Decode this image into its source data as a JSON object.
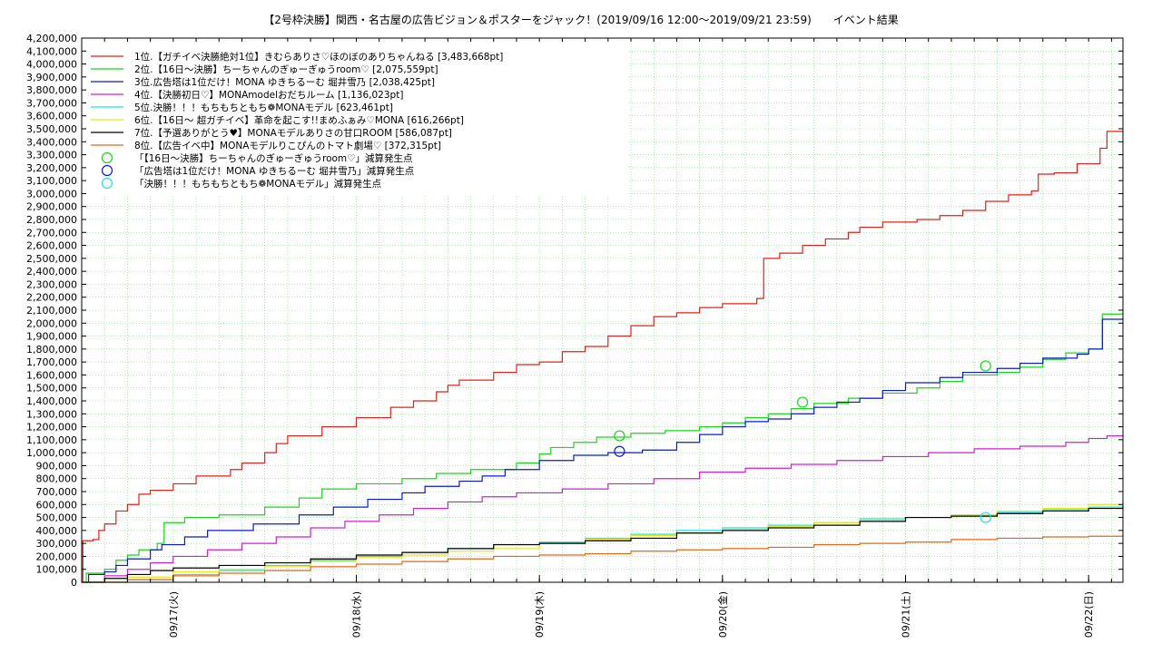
{
  "chart_data": {
    "type": "line",
    "title": "【2号枠決勝】関西・名古屋の広告ビジョン＆ポスターをジャック！(2019/09/16 12:00〜2019/09/21 23:59)　　イベント結果",
    "xlabel": "",
    "ylabel": "",
    "x_start": "2019-09-16 12:00",
    "x_end": "2019-09-22 01:00",
    "x_ticks": [
      "09/17(火)",
      "09/18(水)",
      "09/19(木)",
      "09/20(金)",
      "09/21(土)",
      "09/22(日)"
    ],
    "ylim": [
      0,
      4200000
    ],
    "y_step": 100000,
    "grid": true,
    "legend_position": "top-left",
    "series": [
      {
        "name": "1位.【ガチイベ決勝絶対1位】きむらありさ♡ほのぼのありちゃんねる [3,483,668pt]",
        "color": "#e4201a",
        "points": [
          [
            0.0,
            0
          ],
          [
            0.05,
            320000
          ],
          [
            0.5,
            330000
          ],
          [
            0.75,
            400000
          ],
          [
            1.0,
            450000
          ],
          [
            1.5,
            550000
          ],
          [
            2.0,
            600000
          ],
          [
            2.5,
            680000
          ],
          [
            3.0,
            710000
          ],
          [
            4.0,
            760000
          ],
          [
            5.0,
            820000
          ],
          [
            6.5,
            870000
          ],
          [
            7.0,
            920000
          ],
          [
            8.0,
            1000000
          ],
          [
            8.5,
            1070000
          ],
          [
            9.0,
            1130000
          ],
          [
            10.5,
            1200000
          ],
          [
            12.0,
            1270000
          ],
          [
            13.5,
            1350000
          ],
          [
            14.5,
            1400000
          ],
          [
            15.5,
            1470000
          ],
          [
            16.0,
            1520000
          ],
          [
            16.5,
            1560000
          ],
          [
            18.0,
            1620000
          ],
          [
            19.0,
            1680000
          ],
          [
            20.0,
            1700000
          ],
          [
            21.0,
            1780000
          ],
          [
            22.0,
            1820000
          ],
          [
            23.0,
            1900000
          ],
          [
            24.0,
            1980000
          ],
          [
            25.0,
            2050000
          ],
          [
            26.0,
            2080000
          ],
          [
            27.0,
            2120000
          ],
          [
            28.0,
            2150000
          ],
          [
            29.5,
            2190000
          ],
          [
            29.8,
            2500000
          ],
          [
            30.5,
            2540000
          ],
          [
            31.5,
            2600000
          ],
          [
            32.5,
            2650000
          ],
          [
            33.5,
            2700000
          ],
          [
            34.0,
            2740000
          ],
          [
            35.0,
            2780000
          ],
          [
            36.5,
            2800000
          ],
          [
            37.5,
            2830000
          ],
          [
            38.5,
            2870000
          ],
          [
            39.5,
            2940000
          ],
          [
            40.5,
            2990000
          ],
          [
            41.5,
            3020000
          ],
          [
            41.8,
            3150000
          ],
          [
            42.5,
            3160000
          ],
          [
            43.5,
            3230000
          ],
          [
            44.5,
            3350000
          ],
          [
            44.8,
            3480000
          ],
          [
            45.5,
            3483668
          ]
        ]
      },
      {
        "name": "2位.【16日〜決勝】ちーちゃんのぎゅーぎゅうroom♡ [2,075,559pt]",
        "color": "#19d819",
        "points": [
          [
            0.0,
            0
          ],
          [
            0.2,
            70000
          ],
          [
            1.0,
            100000
          ],
          [
            1.5,
            170000
          ],
          [
            2.0,
            210000
          ],
          [
            2.5,
            250000
          ],
          [
            3.3,
            300000
          ],
          [
            3.6,
            460000
          ],
          [
            4.5,
            500000
          ],
          [
            6.0,
            520000
          ],
          [
            8.0,
            580000
          ],
          [
            9.5,
            650000
          ],
          [
            10.5,
            720000
          ],
          [
            12.0,
            760000
          ],
          [
            14.0,
            800000
          ],
          [
            15.5,
            840000
          ],
          [
            17.0,
            870000
          ],
          [
            19.0,
            920000
          ],
          [
            20.0,
            990000
          ],
          [
            20.5,
            1040000
          ],
          [
            21.5,
            1080000
          ],
          [
            22.5,
            1120000
          ],
          [
            24.0,
            1150000
          ],
          [
            25.5,
            1170000
          ],
          [
            27.0,
            1200000
          ],
          [
            28.0,
            1230000
          ],
          [
            29.0,
            1270000
          ],
          [
            30.0,
            1300000
          ],
          [
            31.0,
            1340000
          ],
          [
            32.0,
            1380000
          ],
          [
            33.5,
            1420000
          ],
          [
            35.0,
            1460000
          ],
          [
            36.5,
            1500000
          ],
          [
            37.5,
            1550000
          ],
          [
            38.5,
            1600000
          ],
          [
            40.0,
            1620000
          ],
          [
            41.0,
            1660000
          ],
          [
            42.0,
            1720000
          ],
          [
            43.0,
            1770000
          ],
          [
            44.0,
            1800000
          ],
          [
            44.6,
            2070000
          ],
          [
            45.5,
            2075559
          ]
        ]
      },
      {
        "name": "3位.広告塔は1位だけ！MONA ゆきちるーむ  堀井雪乃 [2,038,425pt]",
        "color": "#0a1ad8",
        "points": [
          [
            0.0,
            0
          ],
          [
            0.3,
            60000
          ],
          [
            1.0,
            80000
          ],
          [
            1.5,
            130000
          ],
          [
            2.0,
            180000
          ],
          [
            3.0,
            250000
          ],
          [
            3.5,
            290000
          ],
          [
            4.5,
            350000
          ],
          [
            5.5,
            400000
          ],
          [
            7.5,
            450000
          ],
          [
            9.5,
            520000
          ],
          [
            11.0,
            580000
          ],
          [
            12.5,
            640000
          ],
          [
            14.0,
            690000
          ],
          [
            15.0,
            740000
          ],
          [
            16.5,
            780000
          ],
          [
            17.5,
            820000
          ],
          [
            18.5,
            870000
          ],
          [
            20.0,
            940000
          ],
          [
            21.5,
            980000
          ],
          [
            23.0,
            1000000
          ],
          [
            24.5,
            1020000
          ],
          [
            26.0,
            1080000
          ],
          [
            27.0,
            1140000
          ],
          [
            28.0,
            1200000
          ],
          [
            29.0,
            1240000
          ],
          [
            30.0,
            1260000
          ],
          [
            31.0,
            1300000
          ],
          [
            32.0,
            1350000
          ],
          [
            33.0,
            1390000
          ],
          [
            34.0,
            1420000
          ],
          [
            35.0,
            1480000
          ],
          [
            36.0,
            1540000
          ],
          [
            37.5,
            1580000
          ],
          [
            38.5,
            1620000
          ],
          [
            40.0,
            1650000
          ],
          [
            41.0,
            1690000
          ],
          [
            42.0,
            1730000
          ],
          [
            43.5,
            1760000
          ],
          [
            44.0,
            1800000
          ],
          [
            44.6,
            2030000
          ],
          [
            45.5,
            2038425
          ]
        ]
      },
      {
        "name": "4位.【決勝初日♡】MONAmodelおだちルーム [1,136,023pt]",
        "color": "#d31dd3",
        "points": [
          [
            0.0,
            0
          ],
          [
            1.0,
            50000
          ],
          [
            2.0,
            100000
          ],
          [
            3.0,
            150000
          ],
          [
            4.0,
            200000
          ],
          [
            5.5,
            250000
          ],
          [
            7.0,
            300000
          ],
          [
            8.5,
            350000
          ],
          [
            10.0,
            420000
          ],
          [
            11.5,
            470000
          ],
          [
            13.0,
            520000
          ],
          [
            14.5,
            570000
          ],
          [
            16.0,
            620000
          ],
          [
            17.5,
            660000
          ],
          [
            19.0,
            690000
          ],
          [
            21.0,
            720000
          ],
          [
            23.0,
            760000
          ],
          [
            25.0,
            800000
          ],
          [
            27.0,
            850000
          ],
          [
            29.0,
            880000
          ],
          [
            31.0,
            910000
          ],
          [
            33.0,
            940000
          ],
          [
            35.0,
            970000
          ],
          [
            37.0,
            1000000
          ],
          [
            39.0,
            1030000
          ],
          [
            41.0,
            1050000
          ],
          [
            43.0,
            1080000
          ],
          [
            44.0,
            1110000
          ],
          [
            44.8,
            1130000
          ],
          [
            45.5,
            1136023
          ]
        ]
      },
      {
        "name": "5位.決勝！！！もちもちともち❁MONAモデル [623,461pt]",
        "color": "#19e5e5",
        "points": [
          [
            0.0,
            0
          ],
          [
            2.0,
            20000
          ],
          [
            4.0,
            60000
          ],
          [
            6.0,
            90000
          ],
          [
            8.0,
            130000
          ],
          [
            10.0,
            170000
          ],
          [
            12.0,
            200000
          ],
          [
            14.0,
            230000
          ],
          [
            16.0,
            260000
          ],
          [
            18.0,
            290000
          ],
          [
            20.0,
            310000
          ],
          [
            22.0,
            340000
          ],
          [
            24.0,
            370000
          ],
          [
            26.0,
            400000
          ],
          [
            28.0,
            420000
          ],
          [
            30.0,
            440000
          ],
          [
            32.0,
            460000
          ],
          [
            34.0,
            490000
          ],
          [
            36.0,
            500000
          ],
          [
            38.0,
            520000
          ],
          [
            40.0,
            540000
          ],
          [
            42.0,
            560000
          ],
          [
            44.0,
            580000
          ],
          [
            45.5,
            623461
          ]
        ]
      },
      {
        "name": "6位.【16日〜 超ガチイベ】革命を起こす!!まめふぁみ♡MONA [616,266pt]",
        "color": "#e8e81a",
        "points": [
          [
            0.0,
            0
          ],
          [
            2.0,
            40000
          ],
          [
            4.0,
            80000
          ],
          [
            6.0,
            100000
          ],
          [
            8.0,
            120000
          ],
          [
            10.0,
            160000
          ],
          [
            12.0,
            190000
          ],
          [
            14.0,
            210000
          ],
          [
            16.0,
            240000
          ],
          [
            18.0,
            260000
          ],
          [
            20.0,
            300000
          ],
          [
            22.0,
            330000
          ],
          [
            24.0,
            360000
          ],
          [
            26.0,
            380000
          ],
          [
            28.0,
            410000
          ],
          [
            30.0,
            430000
          ],
          [
            32.0,
            460000
          ],
          [
            34.0,
            480000
          ],
          [
            36.0,
            500000
          ],
          [
            38.0,
            520000
          ],
          [
            40.0,
            550000
          ],
          [
            42.0,
            570000
          ],
          [
            44.0,
            600000
          ],
          [
            45.5,
            616266
          ]
        ]
      },
      {
        "name": "7位.【予選ありがとう♥】MONAモデルありさの甘口ROOM [586,087pt]",
        "color": "#000000",
        "points": [
          [
            0.0,
            0
          ],
          [
            1.0,
            30000
          ],
          [
            2.0,
            60000
          ],
          [
            3.0,
            90000
          ],
          [
            4.0,
            110000
          ],
          [
            6.0,
            130000
          ],
          [
            8.0,
            150000
          ],
          [
            10.0,
            180000
          ],
          [
            12.0,
            210000
          ],
          [
            14.0,
            230000
          ],
          [
            16.0,
            260000
          ],
          [
            18.0,
            290000
          ],
          [
            20.0,
            300000
          ],
          [
            22.0,
            320000
          ],
          [
            24.0,
            340000
          ],
          [
            26.0,
            380000
          ],
          [
            28.0,
            400000
          ],
          [
            30.0,
            420000
          ],
          [
            32.0,
            440000
          ],
          [
            34.0,
            470000
          ],
          [
            36.0,
            500000
          ],
          [
            38.0,
            510000
          ],
          [
            40.0,
            530000
          ],
          [
            42.0,
            550000
          ],
          [
            44.0,
            570000
          ],
          [
            45.5,
            586087
          ]
        ]
      },
      {
        "name": "8位.【広告イベ中】MONAモデルりこぴんのトマト劇場♡ [372,315pt]",
        "color": "#e06a1a",
        "points": [
          [
            0.0,
            0
          ],
          [
            2.0,
            20000
          ],
          [
            4.0,
            50000
          ],
          [
            6.0,
            70000
          ],
          [
            8.0,
            90000
          ],
          [
            10.0,
            120000
          ],
          [
            12.0,
            140000
          ],
          [
            14.0,
            160000
          ],
          [
            16.0,
            180000
          ],
          [
            18.0,
            200000
          ],
          [
            20.0,
            210000
          ],
          [
            22.0,
            220000
          ],
          [
            24.0,
            240000
          ],
          [
            26.0,
            250000
          ],
          [
            28.0,
            260000
          ],
          [
            30.0,
            270000
          ],
          [
            32.0,
            290000
          ],
          [
            34.0,
            300000
          ],
          [
            36.0,
            310000
          ],
          [
            38.0,
            330000
          ],
          [
            40.0,
            340000
          ],
          [
            42.0,
            350000
          ],
          [
            44.0,
            355000
          ],
          [
            45.5,
            372315
          ]
        ]
      }
    ],
    "penalty_series": [
      {
        "name": "「【16日〜決勝】ちーちゃんのぎゅーぎゅうroom♡」減算発生点",
        "color": "#19d819",
        "points": [
          [
            23.5,
            1130000
          ],
          [
            31.5,
            1390000
          ],
          [
            39.5,
            1670000
          ]
        ]
      },
      {
        "name": "「広告塔は1位だけ！MONA ゆきちるーむ  堀井雪乃」減算発生点",
        "color": "#0a1ad8",
        "points": [
          [
            23.5,
            1010000
          ]
        ]
      },
      {
        "name": "「決勝！！！もちもちともち❁MONAモデル」減算発生点",
        "color": "#19e5e5",
        "points": [
          [
            39.5,
            500000
          ]
        ]
      }
    ]
  }
}
